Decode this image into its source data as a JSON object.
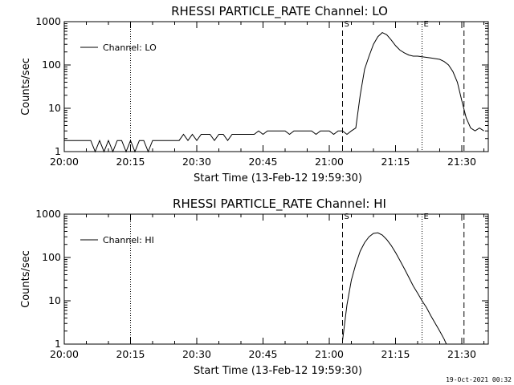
{
  "date_stamp": "19-Oct-2021 00:32",
  "chart_data": [
    {
      "type": "line",
      "title": "RHESSI PARTICLE_RATE Channel: LO",
      "xlabel": "Start Time (13-Feb-12 19:59:30)",
      "ylabel": "Counts/sec",
      "y_scale": "log",
      "ylim": [
        1,
        1000
      ],
      "y_ticks": [
        "1",
        "10",
        "100",
        "1000"
      ],
      "x_ticks": [
        "20:00",
        "20:15",
        "20:30",
        "20:45",
        "21:00",
        "21:15",
        "21:30"
      ],
      "xlim_minutes": [
        0,
        96
      ],
      "legend": "top-left",
      "series": [
        {
          "name": "Channel: LO",
          "x_minutes": [
            0,
            6,
            7,
            8,
            9,
            10,
            11,
            12,
            13,
            14,
            15,
            16,
            17,
            18,
            19,
            20,
            21,
            22,
            23,
            24,
            25,
            26,
            27,
            28,
            29,
            30,
            31,
            32,
            33,
            34,
            35,
            36,
            37,
            38,
            39,
            40,
            41,
            42,
            43,
            44,
            45,
            46,
            47,
            48,
            49,
            50,
            51,
            52,
            53,
            54,
            55,
            56,
            57,
            58,
            59,
            60,
            61,
            62,
            63,
            64,
            65,
            66,
            67,
            68,
            69,
            70,
            71,
            72,
            73,
            74,
            75,
            76,
            77,
            78,
            79,
            80,
            81,
            82,
            83,
            84,
            85,
            86,
            87,
            88,
            89,
            90,
            91,
            92,
            93,
            94,
            95
          ],
          "y": [
            1.8,
            1.8,
            1,
            1.8,
            1,
            1.8,
            1,
            1.8,
            1.8,
            1,
            1.8,
            1,
            1.8,
            1.8,
            1,
            1.8,
            1.8,
            1.8,
            1.8,
            1.8,
            1.8,
            1.8,
            2.5,
            1.8,
            2.5,
            1.8,
            2.5,
            2.5,
            2.5,
            1.8,
            2.5,
            2.5,
            1.8,
            2.5,
            2.5,
            2.5,
            2.5,
            2.5,
            2.5,
            3,
            2.5,
            3,
            3,
            3,
            3,
            3,
            2.5,
            3,
            3,
            3,
            3,
            3,
            2.5,
            3,
            3,
            3,
            2.5,
            3,
            3,
            2.5,
            3,
            3.5,
            20,
            80,
            160,
            300,
            450,
            560,
            500,
            380,
            280,
            220,
            190,
            170,
            160,
            160,
            155,
            150,
            145,
            140,
            135,
            120,
            100,
            70,
            40,
            15,
            6,
            3.5,
            3,
            3.5,
            3
          ],
          "line_style": "solid"
        }
      ],
      "markers": [
        {
          "label": "S",
          "x_minutes": 63,
          "line_style": "dashed"
        },
        {
          "label": "E",
          "x_minutes": 81,
          "line_style": "dotted"
        },
        {
          "label": "",
          "x_minutes": 90.5,
          "line_style": "dashed"
        },
        {
          "label": "",
          "x_minutes": 96,
          "line_style": "dotted"
        },
        {
          "label": "",
          "x_minutes": 15,
          "line_style": "dotted"
        }
      ]
    },
    {
      "type": "line",
      "title": "RHESSI PARTICLE_RATE Channel: HI",
      "xlabel": "Start Time (13-Feb-12 19:59:30)",
      "ylabel": "Counts/sec",
      "y_scale": "log",
      "ylim": [
        1,
        1000
      ],
      "y_ticks": [
        "1",
        "10",
        "100",
        "1000"
      ],
      "x_ticks": [
        "20:00",
        "20:15",
        "20:30",
        "20:45",
        "21:00",
        "21:15",
        "21:30"
      ],
      "xlim_minutes": [
        0,
        96
      ],
      "legend": "top-left",
      "series": [
        {
          "name": "Channel: HI",
          "x_minutes": [
            63,
            64,
            65,
            66,
            67,
            68,
            69,
            70,
            71,
            72,
            73,
            74,
            75,
            76,
            77,
            78,
            79,
            80,
            81,
            82,
            83,
            84,
            85,
            86,
            86.5
          ],
          "y": [
            1.2,
            8,
            30,
            70,
            140,
            220,
            300,
            360,
            370,
            330,
            260,
            190,
            130,
            85,
            55,
            35,
            22,
            15,
            10,
            7,
            4.5,
            3,
            2,
            1.3,
            1
          ],
          "line_style": "solid"
        }
      ],
      "markers": [
        {
          "label": "S",
          "x_minutes": 63,
          "line_style": "dashed"
        },
        {
          "label": "E",
          "x_minutes": 81,
          "line_style": "dotted"
        },
        {
          "label": "",
          "x_minutes": 90.5,
          "line_style": "dashed"
        },
        {
          "label": "",
          "x_minutes": 96,
          "line_style": "dotted"
        },
        {
          "label": "",
          "x_minutes": 15,
          "line_style": "dotted"
        }
      ]
    }
  ]
}
